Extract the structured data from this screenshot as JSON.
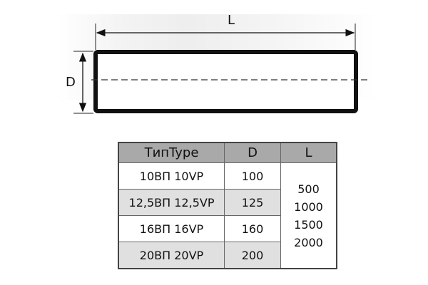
{
  "drawing": {
    "length_label": "L",
    "diameter_label": "D"
  },
  "table": {
    "headers": [
      "ТипType",
      "D",
      "L"
    ],
    "rows": [
      {
        "type": "10ВП 10VP",
        "d": "100"
      },
      {
        "type": "12,5ВП 12,5VP",
        "d": "125"
      },
      {
        "type": "16ВП 16VP",
        "d": "160"
      },
      {
        "type": "20ВП 20VP",
        "d": "200"
      }
    ],
    "lengths": [
      "500",
      "1000",
      "1500",
      "2000"
    ]
  }
}
